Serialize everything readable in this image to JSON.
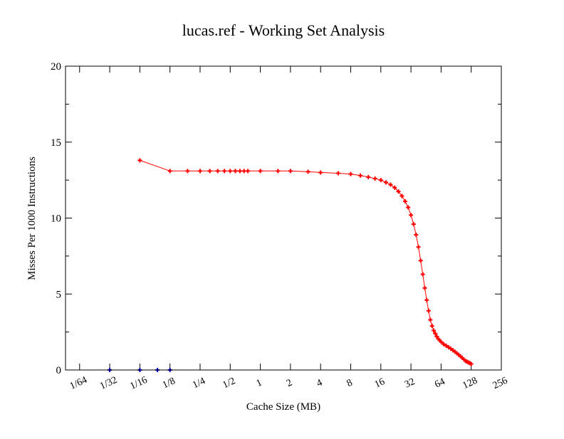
{
  "chart_data": {
    "type": "line",
    "title": "lucas.ref - Working Set Analysis",
    "xlabel": "Cache Size (MB)",
    "ylabel": "Misses Per 1000 Instructions",
    "x_scale": "log2",
    "x_ticks": [
      {
        "label": "1/64",
        "value": 0.015625
      },
      {
        "label": "1/32",
        "value": 0.03125
      },
      {
        "label": "1/16",
        "value": 0.0625
      },
      {
        "label": "1/8",
        "value": 0.125
      },
      {
        "label": "1/4",
        "value": 0.25
      },
      {
        "label": "1/2",
        "value": 0.5
      },
      {
        "label": "1",
        "value": 1
      },
      {
        "label": "2",
        "value": 2
      },
      {
        "label": "4",
        "value": 4
      },
      {
        "label": "8",
        "value": 8
      },
      {
        "label": "16",
        "value": 16
      },
      {
        "label": "32",
        "value": 32
      },
      {
        "label": "64",
        "value": 64
      },
      {
        "label": "128",
        "value": 128
      },
      {
        "label": "256",
        "value": 256
      }
    ],
    "xlim": [
      0.0113,
      256
    ],
    "ylim": [
      0,
      20
    ],
    "y_ticks": [
      0,
      5,
      10,
      15,
      20
    ],
    "grid": false,
    "series": [
      {
        "color": "#ff0000",
        "marker": "plus",
        "x": [
          0.0625,
          0.125,
          0.1875,
          0.25,
          0.3125,
          0.375,
          0.4375,
          0.5,
          0.5625,
          0.625,
          0.6875,
          0.75,
          1,
          1.5,
          2,
          3,
          4,
          6,
          8,
          10,
          12,
          14,
          16,
          18,
          20,
          22,
          24,
          26,
          28,
          30,
          32,
          34,
          36,
          38,
          40,
          42,
          44,
          46,
          48,
          50,
          52,
          54,
          56,
          58,
          60,
          62,
          64,
          68,
          72,
          76,
          80,
          84,
          88,
          92,
          96,
          100,
          104,
          108,
          112,
          116,
          120,
          124,
          128
        ],
        "y": [
          13.8,
          13.1,
          13.1,
          13.1,
          13.1,
          13.1,
          13.1,
          13.1,
          13.1,
          13.1,
          13.1,
          13.1,
          13.1,
          13.1,
          13.1,
          13.05,
          13.0,
          12.95,
          12.9,
          12.8,
          12.7,
          12.6,
          12.5,
          12.35,
          12.2,
          12.0,
          11.75,
          11.45,
          11.1,
          10.7,
          10.2,
          9.6,
          8.9,
          8.1,
          7.2,
          6.3,
          5.4,
          4.6,
          3.9,
          3.3,
          2.9,
          2.6,
          2.4,
          2.2,
          2.05,
          1.95,
          1.85,
          1.7,
          1.6,
          1.5,
          1.4,
          1.3,
          1.2,
          1.1,
          1.0,
          0.9,
          0.8,
          0.7,
          0.6,
          0.55,
          0.5,
          0.45,
          0.4
        ]
      },
      {
        "color": "#0000cc",
        "marker": "plus",
        "x": [
          0.03125,
          0.0625,
          0.09375,
          0.125
        ],
        "y": [
          0,
          0,
          0,
          0
        ]
      }
    ]
  }
}
